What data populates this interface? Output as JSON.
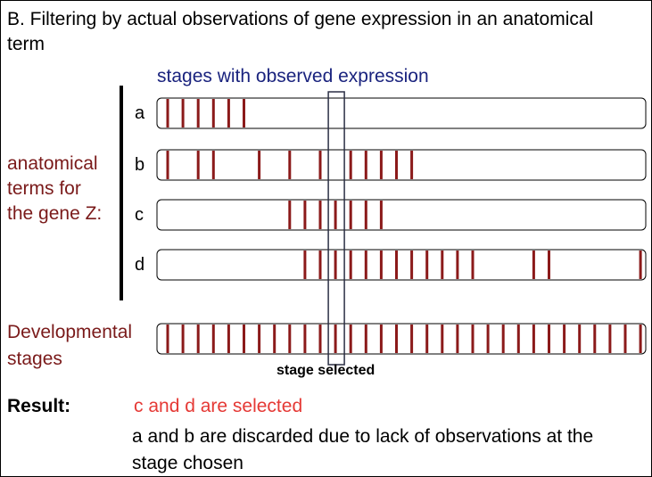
{
  "title": "B. Filtering by actual observations of gene expression in an anatomical term",
  "stages_caption": "stages with observed expression",
  "terms_label_lines": [
    "anatomical",
    "terms for",
    "the gene Z:"
  ],
  "dev_label_lines": [
    "Developmental",
    "stages"
  ],
  "stage_selected_label": "stage selected",
  "result": {
    "label": "Result:",
    "selected": "c and d are selected",
    "discarded": "a and b are discarded due to lack of observations at the stage chosen"
  },
  "colors": {
    "stage_mark": "#8b1a1a",
    "caption": "#1a237e",
    "term_label": "#7a1a1a",
    "selected_text": "#e53935"
  },
  "rows": [
    {
      "letter": "a",
      "marks": [
        0,
        1,
        2,
        3,
        4,
        5
      ]
    },
    {
      "letter": "b",
      "marks": [
        0,
        2,
        3,
        6,
        8,
        10,
        12,
        13,
        14,
        15,
        16
      ]
    },
    {
      "letter": "c",
      "marks": [
        8,
        9,
        10,
        11,
        12,
        13,
        14
      ]
    },
    {
      "letter": "d",
      "marks": [
        9,
        10,
        11,
        12,
        13,
        14,
        15,
        16,
        17,
        18,
        19,
        20,
        24,
        25,
        31
      ]
    }
  ],
  "total_stages": 32,
  "selected_stage": 11
}
